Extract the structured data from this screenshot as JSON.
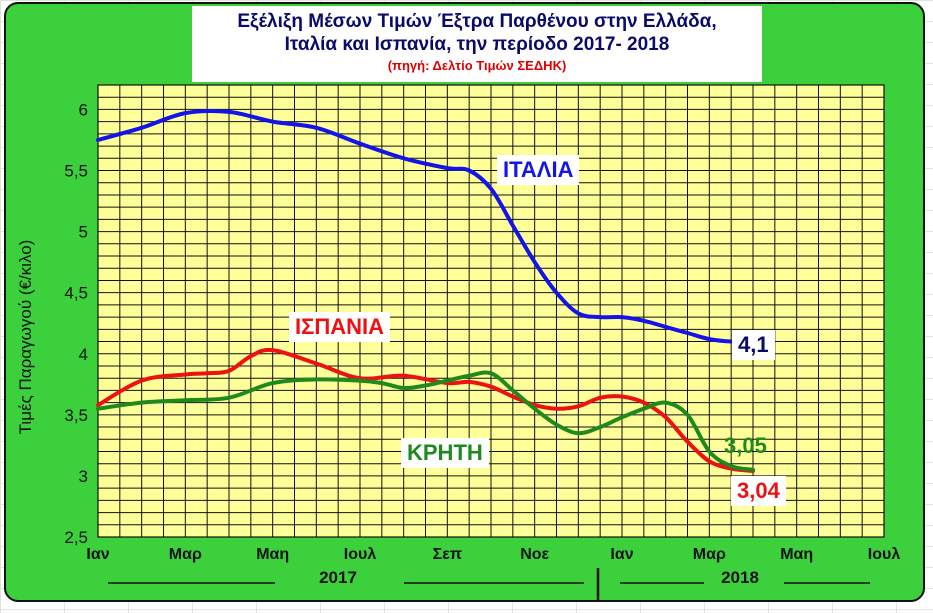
{
  "title": {
    "line1": "Εξέλιξη Μέσων Τιμών Έξτρα Παρθένου στην Ελλάδα,",
    "line2": "Ιταλία και Ισπανία, την περίοδο 2017- 2018",
    "source": "(πηγή: Δελτίο Τιμών ΣΕΔΗΚ)"
  },
  "colors": {
    "frame": "#3cd03c",
    "plot_area": "#ffff99",
    "grid": "#111111",
    "italy": "#1414e6",
    "spain": "#ee1111",
    "crete": "#1e8a1e",
    "title_text": "#0a0a6a"
  },
  "chart_data": {
    "type": "line",
    "title": "Εξέλιξη Μέσων Τιμών Έξτρα Παρθένου στην Ελλάδα, Ιταλία και Ισπανία, την περίοδο 2017- 2018",
    "ylabel": "Τιμές Παραγωγού (€/κιλο)",
    "xlabel": "",
    "ylim": [
      2.5,
      6.2
    ],
    "yticks": [
      "2,5",
      "3",
      "3,5",
      "4",
      "4,5",
      "5",
      "5,5",
      "6"
    ],
    "ytick_values": [
      2.5,
      3,
      3.5,
      4,
      4.5,
      5,
      5.5,
      6
    ],
    "x_range": [
      0,
      18
    ],
    "xticks": [
      {
        "label": "Ιαν",
        "x": 0
      },
      {
        "label": "Μαρ",
        "x": 2
      },
      {
        "label": "Μαη",
        "x": 4
      },
      {
        "label": "Ιουλ",
        "x": 6
      },
      {
        "label": "Σεπ",
        "x": 8
      },
      {
        "label": "Νοε",
        "x": 10
      },
      {
        "label": "Ιαν",
        "x": 12
      },
      {
        "label": "Μαρ",
        "x": 14
      },
      {
        "label": "Μαη",
        "x": 16
      },
      {
        "label": "Ιουλ",
        "x": 18
      }
    ],
    "year_labels": [
      {
        "label": "2017",
        "x": 5
      },
      {
        "label": "2018",
        "x": 15.5
      }
    ],
    "grid": true,
    "series": [
      {
        "name": "ΙΤΑΛΙΑ",
        "color": "#1414e6",
        "end_label": "4,1",
        "x": [
          0,
          1,
          2,
          3,
          4,
          5,
          6,
          7,
          8,
          8.5,
          9,
          9.5,
          10,
          10.5,
          11,
          11.5,
          12,
          12.5,
          13,
          13.5,
          14,
          14.5,
          15
        ],
        "y": [
          5.75,
          5.85,
          5.97,
          5.98,
          5.9,
          5.85,
          5.72,
          5.6,
          5.52,
          5.5,
          5.35,
          5.05,
          4.75,
          4.5,
          4.33,
          4.3,
          4.3,
          4.27,
          4.22,
          4.17,
          4.12,
          4.1,
          4.1
        ]
      },
      {
        "name": "ΙΣΠΑΝΙΑ",
        "color": "#ee1111",
        "end_label": "3,04",
        "x": [
          0,
          1,
          2,
          2.5,
          3,
          3.5,
          4,
          5,
          6,
          7,
          8,
          8.5,
          9,
          9.5,
          10,
          10.5,
          11,
          11.5,
          12,
          12.5,
          13,
          13.5,
          14,
          14.5,
          15
        ],
        "y": [
          3.58,
          3.78,
          3.83,
          3.84,
          3.86,
          3.98,
          4.03,
          3.92,
          3.8,
          3.82,
          3.76,
          3.77,
          3.73,
          3.65,
          3.58,
          3.55,
          3.57,
          3.64,
          3.65,
          3.6,
          3.48,
          3.28,
          3.12,
          3.06,
          3.04
        ]
      },
      {
        "name": "ΚΡΗΤΗ",
        "color": "#1e8a1e",
        "end_label": "3,05",
        "x": [
          0,
          1,
          2,
          3,
          4,
          5,
          6,
          6.5,
          7,
          7.5,
          8,
          8.5,
          9,
          9.5,
          10,
          10.5,
          11,
          11.5,
          12,
          12.5,
          13,
          13.5,
          14,
          14.5,
          15
        ],
        "y": [
          3.55,
          3.6,
          3.62,
          3.64,
          3.76,
          3.79,
          3.78,
          3.76,
          3.72,
          3.74,
          3.78,
          3.82,
          3.84,
          3.7,
          3.55,
          3.42,
          3.35,
          3.4,
          3.48,
          3.55,
          3.6,
          3.5,
          3.2,
          3.08,
          3.05
        ]
      }
    ]
  }
}
